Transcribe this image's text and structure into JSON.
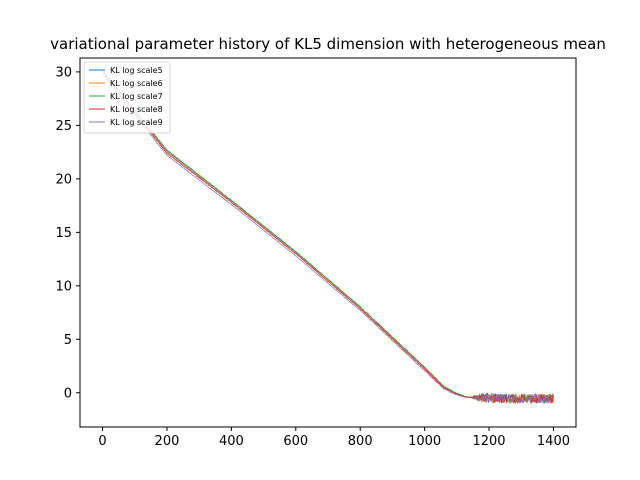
{
  "chart_data": {
    "type": "line",
    "title": "variational parameter history of KL5 dimension with heterogeneous mean",
    "xlabel": "",
    "ylabel": "",
    "xlim": [
      -70,
      1470
    ],
    "ylim": [
      -3.2,
      31.3
    ],
    "xticks": [
      0,
      200,
      400,
      600,
      800,
      1000,
      1200,
      1400
    ],
    "yticks": [
      0,
      5,
      10,
      15,
      20,
      25,
      30
    ],
    "grid": false,
    "legend_position": "top-left",
    "series": [
      {
        "name": "KL log scale5",
        "color": "#1f77b4",
        "points": [
          [
            0,
            30.1
          ],
          [
            200,
            22.6
          ],
          [
            400,
            17.95
          ],
          [
            600,
            13.15
          ],
          [
            800,
            8.0
          ],
          [
            1000,
            2.35
          ],
          [
            1060,
            0.55
          ],
          [
            1100,
            -0.1
          ],
          [
            1130,
            -0.4
          ],
          [
            1200,
            -0.5
          ],
          [
            1300,
            -0.55
          ],
          [
            1400,
            -0.55
          ]
        ]
      },
      {
        "name": "KL log scale6",
        "color": "#ff7f0e",
        "points": [
          [
            0,
            30.0
          ],
          [
            200,
            22.5
          ],
          [
            400,
            17.85
          ],
          [
            600,
            13.05
          ],
          [
            800,
            7.9
          ],
          [
            1000,
            2.25
          ],
          [
            1060,
            0.5
          ],
          [
            1100,
            -0.15
          ],
          [
            1130,
            -0.4
          ],
          [
            1200,
            -0.5
          ],
          [
            1300,
            -0.55
          ],
          [
            1400,
            -0.55
          ]
        ]
      },
      {
        "name": "KL log scale7",
        "color": "#2ca02c",
        "points": [
          [
            0,
            30.2
          ],
          [
            200,
            22.7
          ],
          [
            400,
            18.0
          ],
          [
            600,
            13.2
          ],
          [
            800,
            8.05
          ],
          [
            1000,
            2.4
          ],
          [
            1060,
            0.6
          ],
          [
            1100,
            -0.05
          ],
          [
            1130,
            -0.4
          ],
          [
            1200,
            -0.5
          ],
          [
            1300,
            -0.55
          ],
          [
            1400,
            -0.55
          ]
        ]
      },
      {
        "name": "KL log scale8",
        "color": "#d62728",
        "points": [
          [
            0,
            29.9
          ],
          [
            200,
            22.4
          ],
          [
            400,
            17.8
          ],
          [
            600,
            13.0
          ],
          [
            800,
            7.85
          ],
          [
            1000,
            2.2
          ],
          [
            1060,
            0.45
          ],
          [
            1100,
            -0.15
          ],
          [
            1130,
            -0.4
          ],
          [
            1200,
            -0.5
          ],
          [
            1300,
            -0.55
          ],
          [
            1400,
            -0.55
          ]
        ]
      },
      {
        "name": "KL log scale9",
        "color": "#9467bd",
        "points": [
          [
            0,
            29.8
          ],
          [
            200,
            22.2
          ],
          [
            400,
            17.6
          ],
          [
            600,
            12.8
          ],
          [
            800,
            7.7
          ],
          [
            1000,
            2.05
          ],
          [
            1060,
            0.35
          ],
          [
            1100,
            -0.2
          ],
          [
            1130,
            -0.45
          ],
          [
            1200,
            -0.5
          ],
          [
            1300,
            -0.55
          ],
          [
            1400,
            -0.55
          ]
        ]
      }
    ]
  }
}
